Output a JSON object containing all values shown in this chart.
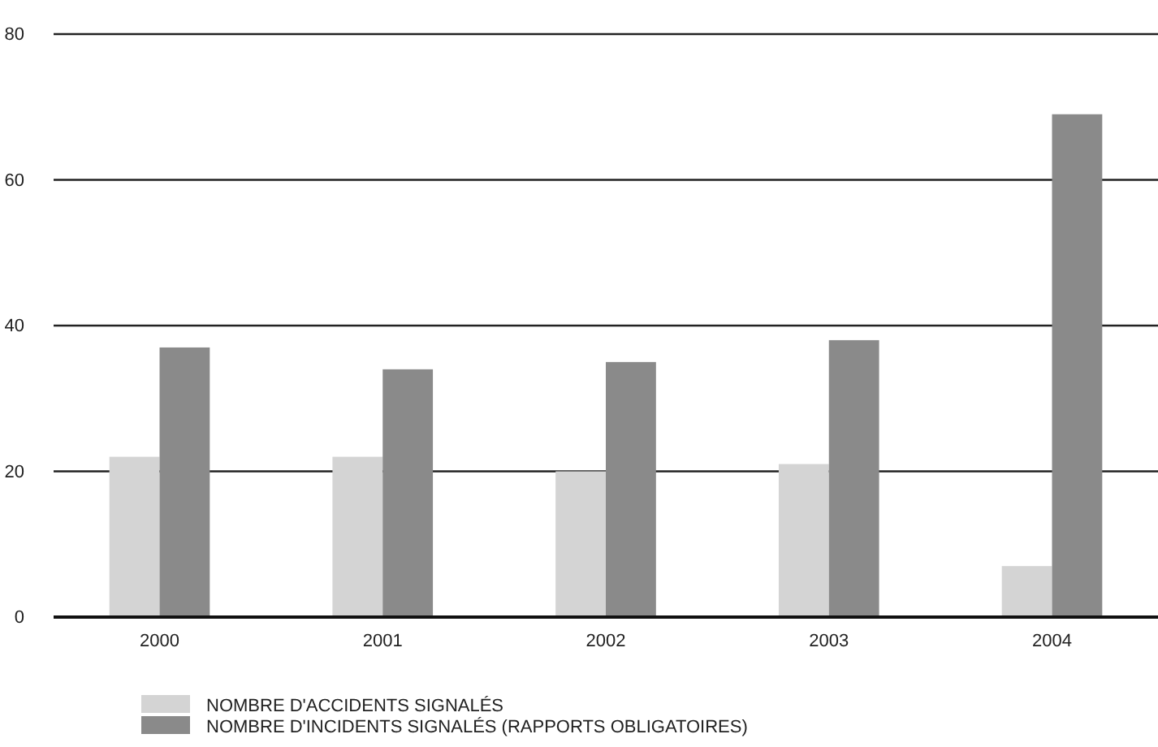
{
  "chart_data": {
    "type": "bar",
    "categories": [
      "2000",
      "2001",
      "2002",
      "2003",
      "2004"
    ],
    "series": [
      {
        "name": "NOMBRE D'ACCIDENTS SIGNALÉS",
        "color": "#d4d4d4",
        "values": [
          22,
          22,
          20,
          21,
          7
        ]
      },
      {
        "name": "NOMBRE D'INCIDENTS SIGNALÉS (RAPPORTS OBLIGATOIRES)",
        "color": "#8a8a8a",
        "values": [
          37,
          34,
          35,
          38,
          69
        ]
      }
    ],
    "ylim": [
      0,
      80
    ],
    "yticks": [
      0,
      20,
      40,
      60,
      80
    ],
    "grid": "y",
    "legend": "bottom"
  }
}
